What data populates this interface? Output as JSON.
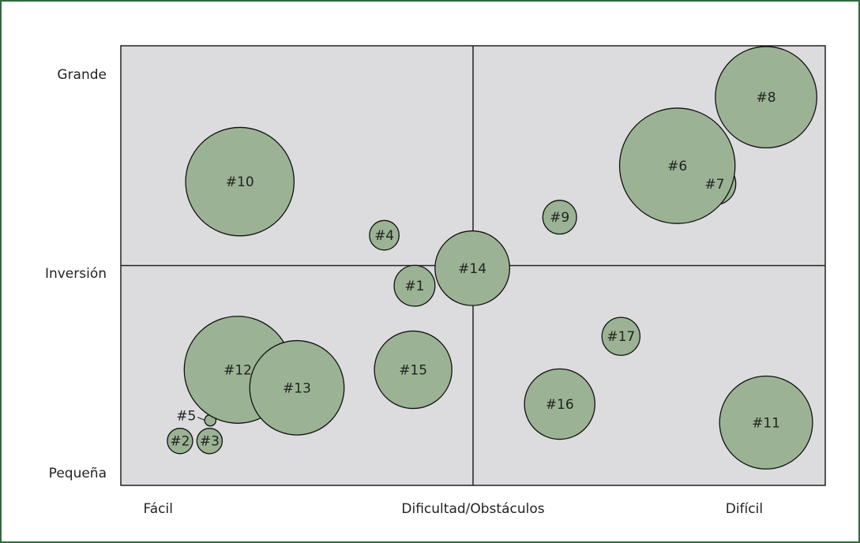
{
  "chart_data": {
    "type": "bubble",
    "labels": [
      "#1",
      "#2",
      "#3",
      "#4",
      "#5",
      "#7",
      "#6",
      "#8",
      "#9",
      "#10",
      "#11",
      "#12",
      "#13",
      "#14",
      "#15",
      "#16",
      "#17"
    ],
    "x": [
      41.7,
      8.4,
      12.6,
      37.4,
      12.7,
      84.3,
      79.0,
      91.6,
      62.3,
      16.9,
      91.6,
      16.6,
      25.0,
      49.9,
      41.5,
      62.3,
      71.0
    ],
    "y": [
      45.4,
      10.1,
      10.1,
      56.9,
      14.8,
      68.6,
      72.7,
      88.3,
      61.0,
      69.1,
      14.3,
      26.3,
      22.2,
      49.4,
      26.3,
      18.5,
      33.9
    ],
    "sizes": [
      2.9,
      1.8,
      1.8,
      2.1,
      0.8,
      3.0,
      8.2,
      7.2,
      2.4,
      7.7,
      6.6,
      7.6,
      6.7,
      5.3,
      5.5,
      5.0,
      2.7
    ],
    "color": "#9bb394",
    "xlim": [
      0,
      100
    ],
    "ylim": [
      0,
      100
    ],
    "xticks": [
      {
        "value": 5.3,
        "label": "Fácil"
      },
      {
        "value": 50,
        "label": "Dificultad/Obstáculos"
      },
      {
        "value": 88.5,
        "label": "Difícil"
      }
    ],
    "yticks": [
      {
        "value": 2.7,
        "label": "Pequeña"
      },
      {
        "value": 48.1,
        "label": "Inversión"
      },
      {
        "value": 93.4,
        "label": "Grande"
      }
    ]
  }
}
